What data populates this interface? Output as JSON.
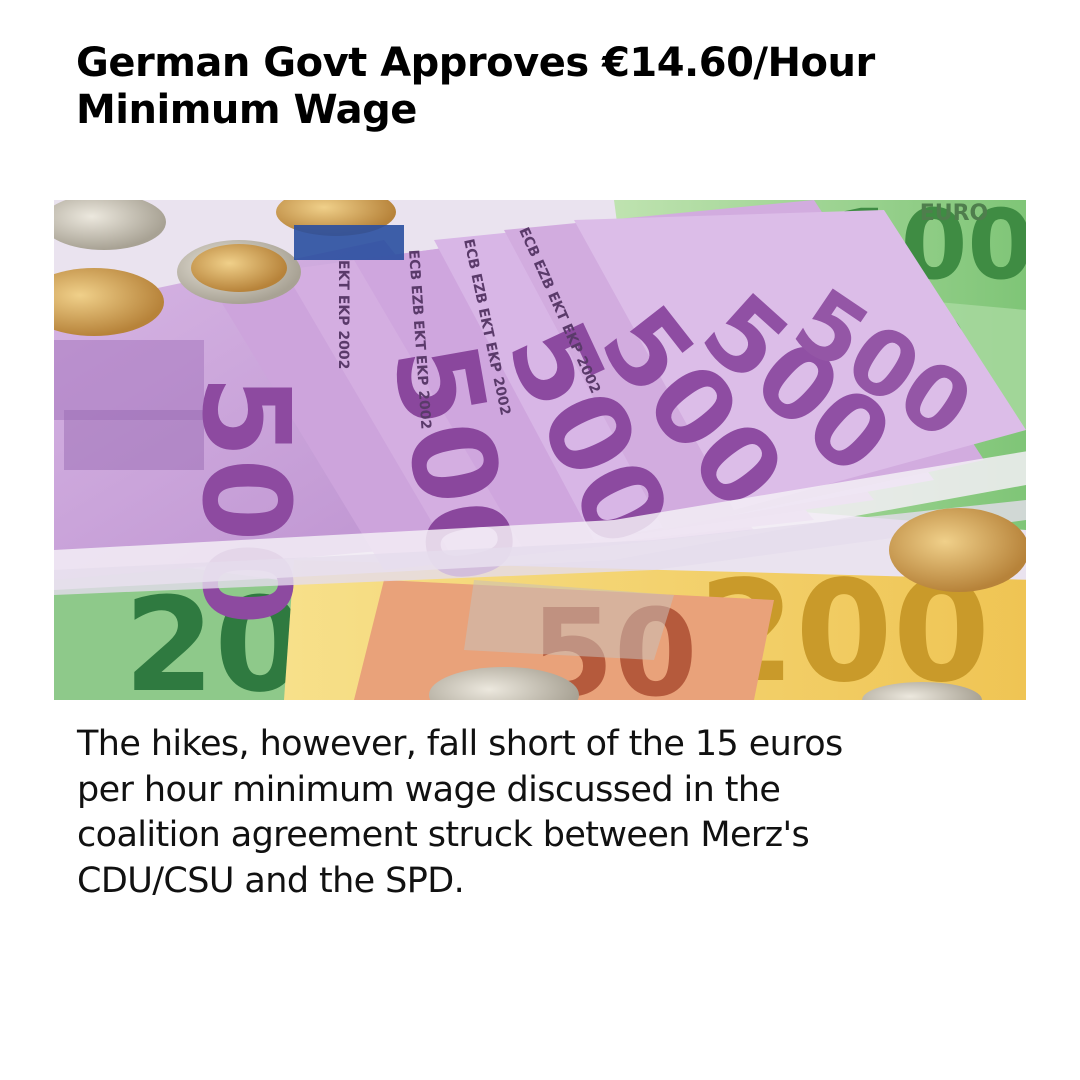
{
  "headline": {
    "lines": [
      "German Govt Approves €14.60/Hour",
      "Minimum Wage"
    ]
  },
  "photo": {
    "subject": "euro banknotes and coins",
    "banknote_labels": {
      "n500": "500",
      "n100": "100",
      "n200": "200",
      "n50": "50",
      "n20": "20",
      "euro": "EURO",
      "ekt": "EKT EKP 2002"
    },
    "colors": {
      "note500": "#c79fd8",
      "note100": "#8fcf86",
      "note200": "#f2d36a",
      "note50": "#e9a27a",
      "coin_gold": "#d4a85a",
      "coin_silver": "#c9c4b8"
    }
  },
  "body": {
    "lines": [
      "The hikes, however, fall short of the 15 euros",
      "per hour minimum wage discussed in the",
      "coalition agreement struck between Merz's",
      "CDU/CSU and the SPD."
    ]
  }
}
